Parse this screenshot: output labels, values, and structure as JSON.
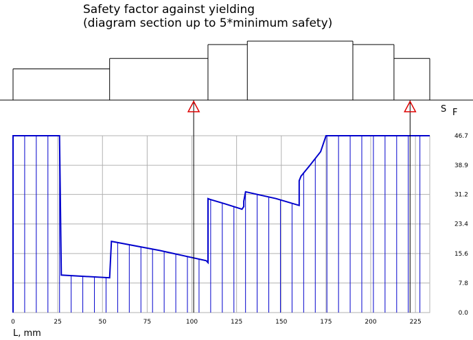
{
  "title_line1": "Safety factor against yielding",
  "title_line2": "(diagram section up to 5*minimum safety)",
  "chart_data": {
    "type": "line",
    "title": "Safety factor against yielding (diagram section up to 5*minimum safety)",
    "xlabel": "L, mm",
    "ylabel": "S F",
    "ylabel_main": "S",
    "ylabel_sub": "F",
    "xlim": [
      0,
      233
    ],
    "ylim": [
      0,
      46.7
    ],
    "x_ticks": [
      "0",
      "25",
      "50",
      "75",
      "100",
      "125",
      "150",
      "175",
      "200",
      "225"
    ],
    "y_ticks": [
      "0.0",
      "7.8",
      "15.6",
      "23.4",
      "31.2",
      "38.9",
      "46.7"
    ],
    "grid": true,
    "series": [
      {
        "x": [
          0,
          0,
          26,
          27,
          54,
          54,
          55,
          82,
          108,
          109,
          109,
          110,
          118,
          128,
          129,
          129,
          130,
          147,
          160,
          160,
          161,
          166,
          172,
          175,
          233
        ],
        "y": [
          0,
          46.7,
          46.7,
          9.9,
          9.2,
          9.2,
          18.8,
          16.4,
          13.7,
          13.2,
          30.1,
          29.9,
          28.8,
          27.3,
          28.0,
          29.4,
          31.9,
          30.1,
          28.3,
          34.8,
          36.0,
          38.9,
          42.5,
          46.7,
          46.7
        ],
        "color": "#0000cc"
      }
    ],
    "shaft_profile": [
      {
        "x0": 0,
        "x1": 54,
        "diameter": 18
      },
      {
        "x0": 54,
        "x1": 109,
        "diameter": 24
      },
      {
        "x0": 109,
        "x1": 131,
        "diameter": 32
      },
      {
        "x0": 131,
        "x1": 190,
        "diameter": 34
      },
      {
        "x0": 190,
        "x1": 213,
        "diameter": 32
      },
      {
        "x0": 213,
        "x1": 233,
        "diameter": 24
      }
    ],
    "critical_sections": [
      101,
      222
    ],
    "colors": {
      "curve": "#0000cc",
      "hatch": "#0000cc",
      "grid": "#b0b0b0",
      "marker": "#dd0000"
    }
  }
}
